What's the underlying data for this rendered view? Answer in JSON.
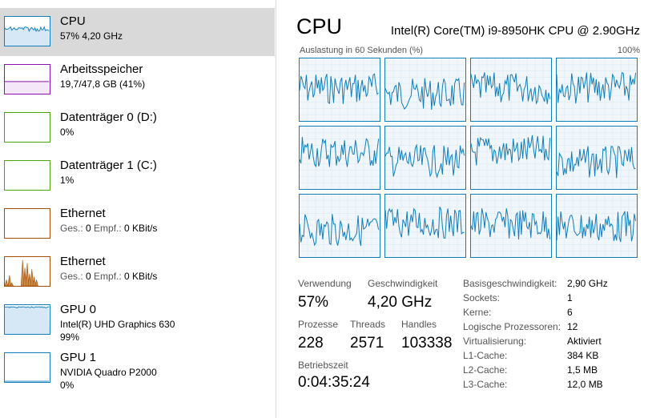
{
  "sidebar": {
    "items": [
      {
        "title": "CPU",
        "line1": "57% 4,20 GHz",
        "line2": "",
        "kind": "cpu",
        "color": "#117dbb",
        "selected": true
      },
      {
        "title": "Arbeitsspeicher",
        "line1": "19,7/47,8 GB (41%)",
        "line2": "",
        "kind": "memory",
        "color": "#8b12ae",
        "selected": false
      },
      {
        "title": "Datenträger 0 (D:)",
        "line1": "0%",
        "line2": "",
        "kind": "disk",
        "color": "#4da60c",
        "selected": false
      },
      {
        "title": "Datenträger 1 (C:)",
        "line1": "1%",
        "line2": "",
        "kind": "disk",
        "color": "#4da60c",
        "selected": false
      },
      {
        "title": "Ethernet",
        "line1_a": "Ges.: ",
        "line1_b": "0 ",
        "line1_c": "Empf.: ",
        "line1_d": "0 KBit/s",
        "kind": "ethernet",
        "color": "#a74f01",
        "selected": false
      },
      {
        "title": "Ethernet",
        "line1_a": "Ges.: ",
        "line1_b": "0 ",
        "line1_c": "Empf.: ",
        "line1_d": "0 KBit/s",
        "kind": "ethernet-active",
        "color": "#a74f01",
        "selected": false
      },
      {
        "title": "GPU 0",
        "line1": "Intel(R) UHD Graphics 630",
        "line2": "99%",
        "kind": "gpu",
        "color": "#117dbb",
        "selected": false
      },
      {
        "title": "GPU 1",
        "line1": "NVIDIA Quadro P2000",
        "line2": "0%",
        "kind": "gpu-idle",
        "color": "#117dbb",
        "selected": false
      }
    ]
  },
  "main": {
    "title": "CPU",
    "model": "Intel(R) Core(TM) i9-8950HK CPU @ 2.90GHz",
    "graph_label": "Auslastung in 60 Sekunden (%)",
    "graph_max": "100%",
    "core_count": 12,
    "line_color": "#117dbb",
    "stats": {
      "usage_label": "Verwendung",
      "usage_value": "57%",
      "speed_label": "Geschwindigkeit",
      "speed_value": "4,20 GHz",
      "processes_label": "Prozesse",
      "processes_value": "228",
      "threads_label": "Threads",
      "threads_value": "2571",
      "handles_label": "Handles",
      "handles_value": "103338",
      "uptime_label": "Betriebszeit",
      "uptime_value": "0:04:35:24"
    },
    "specs": [
      {
        "key": "Basisgeschwindigkeit:",
        "value": "2,90 GHz"
      },
      {
        "key": "Sockets:",
        "value": "1"
      },
      {
        "key": "Kerne:",
        "value": "6"
      },
      {
        "key": "Logische Prozessoren:",
        "value": "12"
      },
      {
        "key": "Virtualisierung:",
        "value": "Aktiviert"
      },
      {
        "key": "L1-Cache:",
        "value": "384 KB"
      },
      {
        "key": "L2-Cache:",
        "value": "1,5 MB"
      },
      {
        "key": "L3-Cache:",
        "value": "12,0 MB"
      }
    ]
  }
}
